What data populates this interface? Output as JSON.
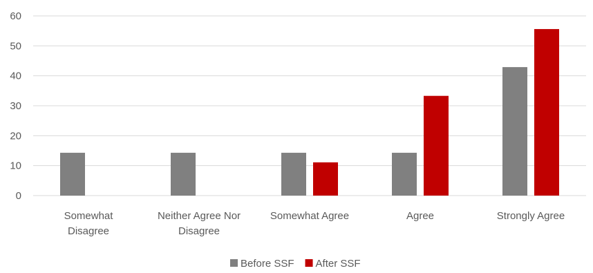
{
  "chart_data": {
    "type": "bar",
    "categories": [
      [
        "Somewhat",
        "Disagree"
      ],
      [
        "Neither Agree Nor",
        "Disagree"
      ],
      [
        "Somewhat Agree"
      ],
      [
        "Agree"
      ],
      [
        "Strongly Agree"
      ]
    ],
    "series": [
      {
        "name": "Before SSF",
        "color": "#808080",
        "values": [
          14.3,
          14.3,
          14.3,
          14.3,
          42.9
        ]
      },
      {
        "name": "After SSF",
        "color": "#c00000",
        "values": [
          0,
          0,
          11.1,
          33.3,
          55.6
        ]
      }
    ],
    "ylim": [
      0,
      60
    ],
    "yticks": [
      0,
      10,
      20,
      30,
      40,
      50,
      60
    ],
    "grid": true,
    "legend_position": "bottom"
  }
}
